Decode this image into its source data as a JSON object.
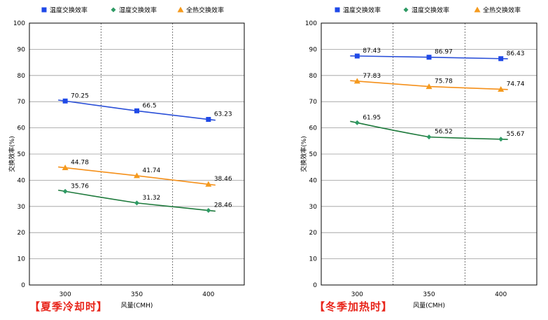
{
  "chart_data": [
    {
      "type": "line",
      "caption": "【夏季冷却时】",
      "xlabel": "风量(CMH)",
      "ylabel": "交换效率(%)",
      "categories": [
        "300",
        "350",
        "400"
      ],
      "ylim": [
        0,
        100
      ],
      "yticks": [
        0,
        10,
        20,
        30,
        40,
        50,
        60,
        70,
        80,
        90,
        100
      ],
      "grid": true,
      "legend": "top",
      "series": [
        {
          "name": "温度交换效率",
          "color": "#1f49e8",
          "line_color": "#2a4fd8",
          "marker": "square",
          "values": [
            70.25,
            66.5,
            63.23
          ],
          "labels": [
            "70.25",
            "66.5",
            "63.23"
          ]
        },
        {
          "name": "湿度交换效率",
          "color": "#2e9a64",
          "line_color": "#1e7a3c",
          "marker": "diamond",
          "values": [
            35.76,
            31.32,
            28.46
          ],
          "labels": [
            "35.76",
            "31.32",
            "28.46"
          ]
        },
        {
          "name": "全热交换效率",
          "color": "#f59a1d",
          "line_color": "#f5901a",
          "marker": "triangle",
          "values": [
            44.78,
            41.74,
            38.46
          ],
          "labels": [
            "44.78",
            "41.74",
            "38.46"
          ]
        }
      ]
    },
    {
      "type": "line",
      "caption": "【冬季加热时】",
      "xlabel": "风量(CMH)",
      "ylabel": "交换效率(%)",
      "categories": [
        "300",
        "350",
        "400"
      ],
      "ylim": [
        0,
        100
      ],
      "yticks": [
        0,
        10,
        20,
        30,
        40,
        50,
        60,
        70,
        80,
        90,
        100
      ],
      "grid": true,
      "legend": "top",
      "series": [
        {
          "name": "温度交换效率",
          "color": "#1f49e8",
          "line_color": "#2a4fd8",
          "marker": "square",
          "values": [
            87.43,
            86.97,
            86.43
          ],
          "labels": [
            "87.43",
            "86.97",
            "86.43"
          ]
        },
        {
          "name": "湿度交换效率",
          "color": "#2e9a64",
          "line_color": "#1e7a3c",
          "marker": "diamond",
          "values": [
            61.95,
            56.52,
            55.67
          ],
          "labels": [
            "61.95",
            "56.52",
            "55.67"
          ]
        },
        {
          "name": "全热交换效率",
          "color": "#f59a1d",
          "line_color": "#f5901a",
          "marker": "triangle",
          "values": [
            77.83,
            75.78,
            74.74
          ],
          "labels": [
            "77.83",
            "75.78",
            "74.74"
          ]
        }
      ]
    }
  ]
}
